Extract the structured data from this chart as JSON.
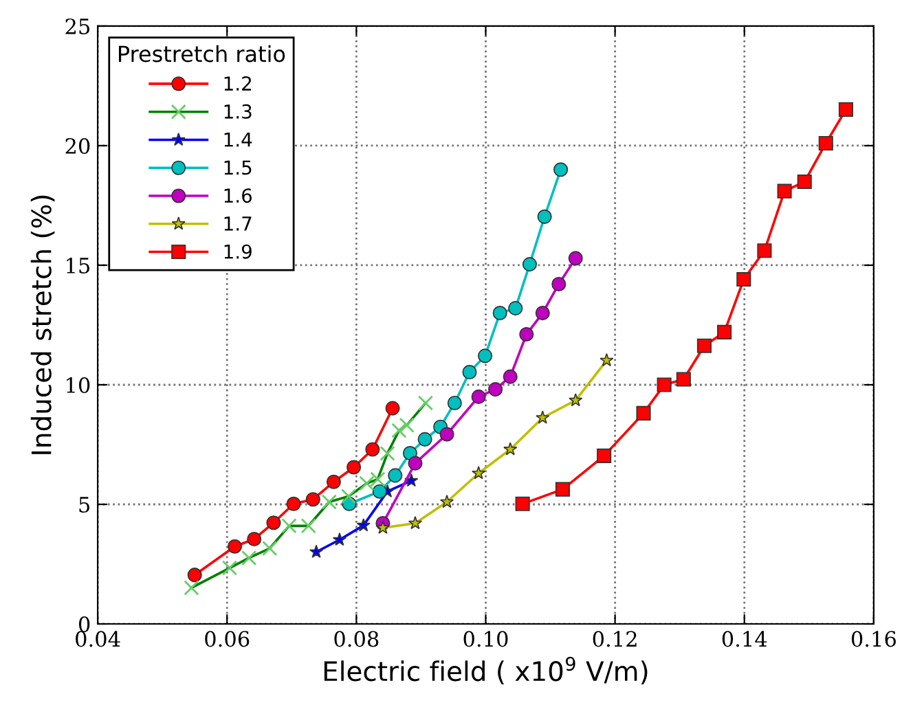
{
  "chart_data": {
    "type": "line",
    "xlabel": "Electric field ( x10$^{9}$ V/m)",
    "ylabel": "Induced stretch (%)",
    "legend_title": "Prestretch ratio",
    "legend": "top left",
    "grid": true,
    "line_style": "solid",
    "xlim": [
      0.04,
      0.16
    ],
    "ylim": [
      0,
      25
    ],
    "xticks": [
      0.04,
      0.06,
      0.08,
      {
        "value": 0.1,
        "label": "0.10"
      },
      0.12,
      0.14,
      0.16
    ],
    "yticks": [
      0,
      5,
      10,
      15,
      20,
      25
    ],
    "series": [
      {
        "name": "1.2",
        "color": "#ff0000",
        "marker": "circle",
        "x": [
          0.055,
          0.0612,
          0.0642,
          0.0672,
          0.0703,
          0.0733,
          0.0765,
          0.0796,
          0.0825,
          0.0856
        ],
        "values": [
          2.05,
          3.24,
          3.55,
          4.23,
          5.02,
          5.21,
          5.94,
          6.55,
          7.3,
          9.02
        ]
      },
      {
        "name": "1.3",
        "color": "#008000",
        "marker": "cross",
        "x": [
          0.0545,
          0.0604,
          0.0634,
          0.0666,
          0.0696,
          0.0726,
          0.0758,
          0.0788,
          0.0816,
          0.0833,
          0.0848,
          0.0866,
          0.0878,
          0.0907
        ],
        "values": [
          1.51,
          2.34,
          2.76,
          3.16,
          4.1,
          4.1,
          5.1,
          5.34,
          5.88,
          6.05,
          7.13,
          8.09,
          8.31,
          9.24
        ]
      },
      {
        "name": "1.4",
        "color": "#0000ff",
        "marker": "star",
        "x": [
          0.0738,
          0.0774,
          0.0811,
          0.0848,
          0.0885
        ],
        "values": [
          3.01,
          3.52,
          4.12,
          5.54,
          5.99
        ]
      },
      {
        "name": "1.5",
        "color": "#00bfbf",
        "marker": "circle",
        "x": [
          0.0789,
          0.0836,
          0.086,
          0.0883,
          0.0906,
          0.093,
          0.0952,
          0.0975,
          0.0999,
          0.1022,
          0.1046,
          0.1068,
          0.1091,
          0.1116
        ],
        "values": [
          5.02,
          5.54,
          6.21,
          7.14,
          7.72,
          8.24,
          9.24,
          10.53,
          11.21,
          13.0,
          13.2,
          15.04,
          17.03,
          19.0
        ]
      },
      {
        "name": "1.6",
        "color": "#bf00bf",
        "marker": "circle",
        "x": [
          0.0841,
          0.0891,
          0.094,
          0.0989,
          0.1015,
          0.1038,
          0.1063,
          0.1088,
          0.1113,
          0.1139
        ],
        "values": [
          4.21,
          6.72,
          7.93,
          9.5,
          9.81,
          10.34,
          12.11,
          13.0,
          14.21,
          15.29
        ]
      },
      {
        "name": "1.7",
        "color": "#bfbf00",
        "marker": "star",
        "x": [
          0.0841,
          0.0891,
          0.094,
          0.0989,
          0.1038,
          0.1088,
          0.1139,
          0.1187
        ],
        "values": [
          4.02,
          4.21,
          5.1,
          6.3,
          7.3,
          8.62,
          9.35,
          11.02
        ]
      },
      {
        "name": "1.9",
        "color": "#ff0000",
        "marker": "square",
        "x": [
          0.1057,
          0.1119,
          0.1183,
          0.1244,
          0.1276,
          0.1306,
          0.1338,
          0.1369,
          0.1399,
          0.1431,
          0.1462,
          0.1493,
          0.1526,
          0.1557
        ],
        "values": [
          5.02,
          5.63,
          7.03,
          8.81,
          10.0,
          10.23,
          11.63,
          12.2,
          14.41,
          15.61,
          18.1,
          18.49,
          20.1,
          21.51
        ]
      }
    ]
  }
}
